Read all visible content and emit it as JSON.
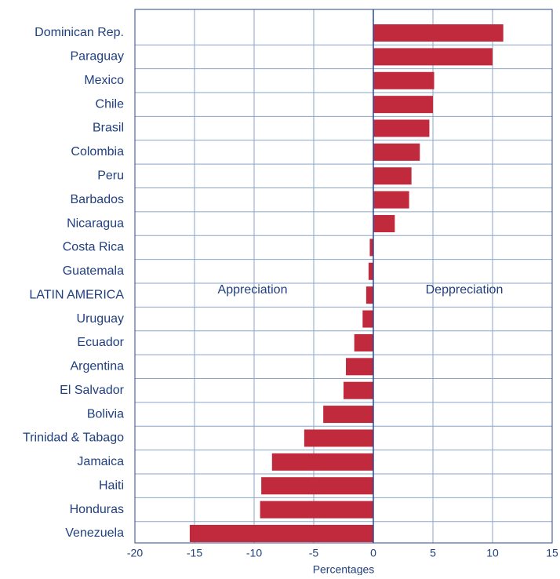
{
  "chart_data": {
    "type": "bar",
    "orientation": "horizontal",
    "categories": [
      "Dominican Rep.",
      "Paraguay",
      "Mexico",
      "Chile",
      "Brasil",
      "Colombia",
      "Peru",
      "Barbados",
      "Nicaragua",
      "Costa Rica",
      "Guatemala",
      "LATIN AMERICA",
      "Uruguay",
      "Ecuador",
      "Argentina",
      "El Salvador",
      "Bolivia",
      "Trinidad & Tabago",
      "Jamaica",
      "Haiti",
      "Honduras",
      "Venezuela"
    ],
    "values": [
      10.9,
      10.0,
      5.1,
      5.0,
      4.7,
      3.9,
      3.2,
      3.0,
      1.8,
      -0.3,
      -0.4,
      -0.6,
      -0.9,
      -1.6,
      -2.3,
      -2.5,
      -4.2,
      -5.8,
      -8.5,
      -9.4,
      -9.5,
      -15.4
    ],
    "color": "#c12a3c",
    "xlim": [
      -20,
      15
    ],
    "xticks": [
      -20,
      -15,
      -10,
      -5,
      0,
      5,
      10,
      15
    ],
    "grid": true,
    "xlabel": "Percentages",
    "annotations": [
      "Appreciation",
      "Deppreciation"
    ]
  }
}
